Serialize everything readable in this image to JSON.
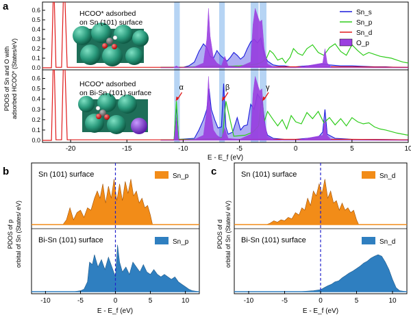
{
  "colors": {
    "Sn_s": "#1a1adc",
    "Sn_p": "#2ecc1a",
    "Sn_d": "#e01818",
    "O_p": "#9b3fe0",
    "highlight": "#9ec6f0",
    "orange": "#f28c18",
    "blue_fill": "#2f7fc0",
    "fermi": "#2222cc"
  },
  "chart_data": [
    {
      "panel": "a",
      "type": "line",
      "xlabel": "E - E_f (eV)",
      "ylabel": "PDOS of Sn and O with adsorbed HCOO* (States/eV)",
      "xlim": [
        -22.5,
        10
      ],
      "xticks": [
        -20,
        -15,
        -10,
        -5,
        0,
        5,
        10
      ],
      "highlight_bands": [
        [
          -10.8,
          -10.3
        ],
        [
          -6.8,
          -6.3
        ],
        [
          -4.0,
          -3.3
        ],
        [
          -3.2,
          -2.6
        ]
      ],
      "subplots": [
        {
          "title_lines": [
            "HCOO* adsorbed",
            "on Sn (101) surface"
          ],
          "ylim": [
            0,
            0.65
          ],
          "yticks": [
            0.0,
            0.1,
            0.2,
            0.3,
            0.4,
            0.5,
            0.6
          ],
          "legend": [
            "Sn_s",
            "Sn_p",
            "Sn_d",
            "O_p"
          ],
          "series": [
            {
              "name": "Sn_s",
              "x": [
                -12,
                -10,
                -9.5,
                -9,
                -8.6,
                -8.2,
                -7.9,
                -7.6,
                -7.3,
                -7.0,
                -6.7,
                -6.4,
                -6.1,
                -5.8,
                -5.5,
                -5.2,
                -4.9,
                -4.6,
                -4.3,
                -4.0,
                -3.7,
                -3.4,
                -3.1,
                -2.8,
                -2.5,
                -2.0,
                -1.5,
                -1.0,
                -0.5,
                0,
                1,
                2,
                2.5,
                3,
                4,
                5,
                6,
                7,
                8,
                9,
                10
              ],
              "y": [
                0.005,
                0.005,
                0.02,
                0.06,
                0.17,
                0.25,
                0.21,
                0.12,
                0.1,
                0.18,
                0.13,
                0.1,
                0.07,
                0.11,
                0.16,
                0.13,
                0.09,
                0.12,
                0.2,
                0.27,
                0.3,
                0.26,
                0.31,
                0.14,
                0.07,
                0.03,
                0.02,
                0.02,
                0.01,
                0.01,
                0.02,
                0.03,
                0.04,
                0.03,
                0.02,
                0.02,
                0.015,
                0.01,
                0.01,
                0.005,
                0.005
              ]
            },
            {
              "name": "Sn_p",
              "x": [
                -12,
                -10,
                -9,
                -8,
                -7,
                -6,
                -5,
                -4,
                -3.4,
                -3.0,
                -2.6,
                -2.3,
                -2.0,
                -1.6,
                -1.2,
                -0.9,
                -0.5,
                -0.2,
                0.2,
                0.6,
                1.0,
                1.5,
                2.0,
                2.5,
                3.0,
                3.5,
                4.0,
                4.5,
                5.0,
                5.5,
                6.0,
                6.5,
                7.0,
                7.5,
                8.0,
                8.5,
                9.0,
                9.5,
                10
              ],
              "y": [
                0.005,
                0.005,
                0.01,
                0.015,
                0.02,
                0.015,
                0.02,
                0.03,
                0.04,
                0.06,
                0.1,
                0.18,
                0.15,
                0.08,
                0.1,
                0.05,
                0.11,
                0.2,
                0.15,
                0.13,
                0.2,
                0.24,
                0.16,
                0.13,
                0.21,
                0.25,
                0.17,
                0.13,
                0.24,
                0.18,
                0.13,
                0.16,
                0.14,
                0.12,
                0.11,
                0.1,
                0.08,
                0.06,
                0.05
              ]
            },
            {
              "name": "Sn_d",
              "x": [
                -22.5,
                -21.7,
                -21.55,
                -21.45,
                -21.3,
                -21.0,
                -20.8,
                -20.65,
                -20.5,
                -20.3,
                -15,
                -10,
                -5,
                0,
                5,
                10
              ],
              "y": [
                0,
                0,
                0.7,
                0.7,
                0.005,
                0.005,
                0.005,
                0.7,
                0.7,
                0.005,
                0.005,
                0.005,
                0.01,
                0.01,
                0.01,
                0.005
              ]
            },
            {
              "name": "O_p",
              "x": [
                -12,
                -10.9,
                -10.6,
                -10.3,
                -9,
                -8.2,
                -7.9,
                -7.75,
                -7.6,
                -7.3,
                -7.0,
                -6.6,
                -6.3,
                -6.0,
                -5.0,
                -4.0,
                -3.8,
                -3.6,
                -3.4,
                -3.2,
                -3.0,
                -2.8,
                -2.5,
                -2.0,
                -1.0,
                0,
                2.4,
                2.6,
                2.8,
                3.2,
                10
              ],
              "y": [
                0,
                0,
                0.02,
                0,
                0.01,
                0.05,
                0.3,
                0.62,
                0.33,
                0.1,
                0.05,
                0.02,
                0.12,
                0.02,
                0.01,
                0.06,
                0.45,
                0.62,
                0.55,
                0.48,
                0.5,
                0.2,
                0.04,
                0.01,
                0,
                0,
                0.05,
                0.2,
                0.05,
                0,
                0
              ]
            }
          ]
        },
        {
          "title_lines": [
            "HCOO* adsorbed",
            "on Bi-Sn (101) surface"
          ],
          "ylim": [
            0,
            0.65
          ],
          "yticks": [
            0.0,
            0.1,
            0.2,
            0.3,
            0.4,
            0.5,
            0.6
          ],
          "annotations": [
            {
              "text": "α",
              "x": -10.6
            },
            {
              "text": "β",
              "x": -6.5
            },
            {
              "text": "γ",
              "x": -2.9
            }
          ],
          "series": [
            {
              "name": "Sn_s",
              "x": [
                -12,
                -10.8,
                -10.6,
                -10.4,
                -9,
                -8.6,
                -8.2,
                -7.9,
                -7.7,
                -7.5,
                -7.2,
                -6.9,
                -6.6,
                -6.4,
                -6.2,
                -6.0,
                -5.6,
                -5.2,
                -4.9,
                -4.6,
                -4.3,
                -4.0,
                -3.7,
                -3.4,
                -3.1,
                -2.9,
                -2.7,
                -2.5,
                -2.0,
                -1.0,
                0,
                1,
                2,
                2.4,
                2.6,
                2.8,
                3.5,
                5,
                7,
                10
              ],
              "y": [
                0.005,
                0.005,
                0.35,
                0.01,
                0.02,
                0.1,
                0.2,
                0.3,
                0.5,
                0.3,
                0.2,
                0.12,
                0.13,
                0.55,
                0.13,
                0.06,
                0.08,
                0.22,
                0.1,
                0.14,
                0.15,
                0.35,
                0.3,
                0.45,
                0.4,
                0.32,
                0.12,
                0.05,
                0.02,
                0.01,
                0.01,
                0.02,
                0.03,
                0.08,
                0.3,
                0.06,
                0.02,
                0.01,
                0.01,
                0.005
              ]
            },
            {
              "name": "Sn_p",
              "x": [
                -12,
                -10.8,
                -10.6,
                -10.4,
                -9,
                -7,
                -6.5,
                -6.2,
                -5.5,
                -4.5,
                -3.8,
                -3.3,
                -3.0,
                -2.8,
                -2.5,
                -2.0,
                -1.6,
                -1.2,
                -0.8,
                -0.4,
                0,
                0.5,
                1.0,
                1.5,
                2.0,
                2.5,
                3.0,
                3.5,
                4.0,
                4.5,
                5.0,
                5.5,
                6.0,
                6.5,
                7.0,
                7.5,
                8.0,
                9.0,
                10
              ],
              "y": [
                0.005,
                0.005,
                0.38,
                0.01,
                0.01,
                0.02,
                0.03,
                0.38,
                0.04,
                0.05,
                0.08,
                0.14,
                0.43,
                0.18,
                0.28,
                0.2,
                0.14,
                0.2,
                0.11,
                0.24,
                0.18,
                0.16,
                0.27,
                0.21,
                0.28,
                0.17,
                0.22,
                0.15,
                0.21,
                0.14,
                0.22,
                0.18,
                0.16,
                0.17,
                0.13,
                0.11,
                0.1,
                0.07,
                0.05
              ]
            },
            {
              "name": "Sn_d",
              "x": [
                -22.5,
                -21.7,
                -21.55,
                -21.45,
                -21.3,
                -21.0,
                -20.8,
                -20.65,
                -20.5,
                -20.3,
                -15,
                -10,
                -5,
                0,
                5,
                10
              ],
              "y": [
                0,
                0,
                0.7,
                0.7,
                0.005,
                0.005,
                0.005,
                0.7,
                0.7,
                0.005,
                0.005,
                0.005,
                0.01,
                0.01,
                0.01,
                0.005
              ]
            },
            {
              "name": "O_p",
              "x": [
                -12,
                -10.8,
                -10.6,
                -10.4,
                -9,
                -8.2,
                -7.9,
                -7.75,
                -7.6,
                -7.3,
                -7.0,
                -6.6,
                -6.3,
                -6.0,
                -5.0,
                -4.0,
                -3.8,
                -3.6,
                -3.4,
                -3.2,
                -3.0,
                -2.8,
                -2.5,
                -2.0,
                -1.0,
                0,
                2.4,
                2.6,
                2.8,
                3.2,
                10
              ],
              "y": [
                0,
                0,
                0.22,
                0,
                0.01,
                0.05,
                0.3,
                0.62,
                0.33,
                0.1,
                0.05,
                0.02,
                0.12,
                0.02,
                0.01,
                0.06,
                0.45,
                0.62,
                0.55,
                0.48,
                0.5,
                0.2,
                0.04,
                0.01,
                0,
                0,
                0.05,
                0.2,
                0.05,
                0,
                0
              ]
            }
          ]
        }
      ]
    },
    {
      "panel": "b",
      "type": "area",
      "xlabel": "E - E_f (eV)",
      "ylabel": "PDOS of p orbital of Sn (States/eV)",
      "xlim": [
        -12,
        12
      ],
      "xticks": [
        -10,
        -5,
        0,
        5,
        10
      ],
      "fermi_level": 0,
      "subplots": [
        {
          "title": "Sn (101) surface",
          "legend": "Sn_p",
          "color": "orange",
          "x": [
            -7.5,
            -7,
            -6.5,
            -6,
            -5.5,
            -5,
            -4.5,
            -4,
            -3.5,
            -3,
            -2.6,
            -2.2,
            -1.8,
            -1.4,
            -1,
            -0.6,
            -0.2,
            0.2,
            0.6,
            1,
            1.4,
            1.8,
            2.2,
            2.6,
            3,
            3.4,
            3.8,
            4.2,
            4.6,
            5,
            5.3
          ],
          "y": [
            0,
            0.1,
            0.35,
            0.1,
            0.25,
            0.3,
            0.15,
            0.35,
            0.3,
            0.55,
            0.7,
            0.55,
            0.85,
            0.45,
            0.8,
            0.55,
            0.95,
            0.5,
            0.85,
            0.5,
            0.9,
            0.65,
            0.95,
            0.6,
            0.7,
            0.45,
            0.55,
            0.35,
            0.4,
            0.2,
            0
          ]
        },
        {
          "title": "Bi-Sn (101) surface",
          "legend": "Sn_p",
          "color": "blue_fill",
          "x": [
            -12,
            -6,
            -5,
            -4.5,
            -4,
            -3.7,
            -3.3,
            -3,
            -2.5,
            -2,
            -1.5,
            -1,
            -0.5,
            0,
            0.3,
            0.6,
            1,
            1.5,
            2,
            2.5,
            3,
            3.5,
            4,
            4.5,
            5,
            5.5,
            6,
            6.5,
            7,
            7.5,
            8,
            8.5,
            9,
            9.5,
            10,
            10.5,
            11,
            12
          ],
          "y": [
            0,
            0,
            0.02,
            0.05,
            0.2,
            0.6,
            0.55,
            0.75,
            0.5,
            0.65,
            0.45,
            0.7,
            0.5,
            0.3,
            0.95,
            0.6,
            0.4,
            0.5,
            0.35,
            0.6,
            0.5,
            0.4,
            0.55,
            0.4,
            0.35,
            0.45,
            0.35,
            0.3,
            0.35,
            0.3,
            0.25,
            0.3,
            0.2,
            0.15,
            0.1,
            0.05,
            0.02,
            0
          ]
        }
      ]
    },
    {
      "panel": "c",
      "type": "area",
      "xlabel": "E - E_f (eV)",
      "ylabel": "PDOS of d orbital of Sn (States/eV)",
      "xlim": [
        -12,
        12
      ],
      "xticks": [
        -10,
        -5,
        0,
        5,
        10
      ],
      "fermi_level": 0,
      "subplots": [
        {
          "title": "Sn (101) surface",
          "legend": "Sn_d",
          "color": "orange",
          "x": [
            -7.5,
            -7,
            -6.5,
            -6,
            -5.5,
            -5,
            -4.5,
            -4,
            -3.5,
            -3,
            -2.6,
            -2.2,
            -1.8,
            -1.4,
            -1,
            -0.6,
            -0.2,
            0.2,
            0.6,
            1,
            1.4,
            1.8,
            2.2,
            2.6,
            3,
            3.4,
            3.8,
            4.2,
            4.6,
            5,
            5.3
          ],
          "y": [
            0,
            0.03,
            0.08,
            0.05,
            0.1,
            0.08,
            0.15,
            0.12,
            0.25,
            0.2,
            0.35,
            0.3,
            0.55,
            0.4,
            0.7,
            0.6,
            0.85,
            0.65,
            0.95,
            0.55,
            0.7,
            0.45,
            0.5,
            0.3,
            0.45,
            0.3,
            0.35,
            0.25,
            0.3,
            0.1,
            0
          ]
        },
        {
          "title": "Bi-Sn (101) surface",
          "legend": "Sn_d",
          "color": "blue_fill",
          "x": [
            -12,
            -3,
            -2,
            -1,
            0,
            0.5,
            1,
            1.5,
            2,
            2.5,
            3,
            3.5,
            4,
            4.5,
            5,
            5.5,
            6,
            6.5,
            7,
            7.5,
            8,
            8.5,
            9,
            9.5,
            10,
            10.5,
            11,
            12
          ],
          "y": [
            0,
            0,
            0.01,
            0.02,
            0.04,
            0.08,
            0.12,
            0.15,
            0.2,
            0.22,
            0.28,
            0.33,
            0.38,
            0.42,
            0.47,
            0.52,
            0.58,
            0.62,
            0.68,
            0.72,
            0.75,
            0.72,
            0.6,
            0.45,
            0.25,
            0.08,
            0.02,
            0
          ]
        }
      ]
    }
  ]
}
